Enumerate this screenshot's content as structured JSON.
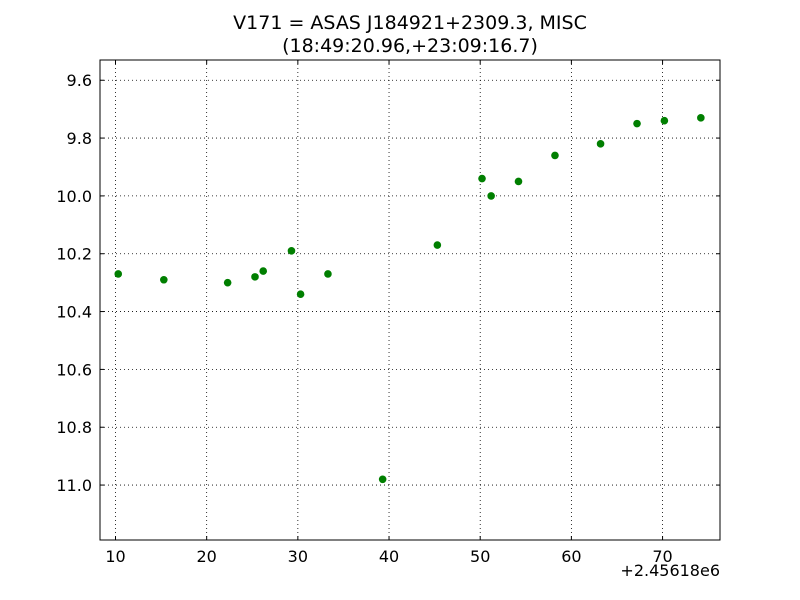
{
  "chart_data": {
    "type": "scatter",
    "title": "V171 = ASAS J184921+2309.3, MISC",
    "subtitle": "(18:49:20.96,+23:09:16.7)",
    "xlabel": "",
    "ylabel": "",
    "x_offset_label": "+2.45618e6",
    "xlim": [
      8.3,
      76.3
    ],
    "ylim": [
      11.19,
      9.53
    ],
    "y_inverted": true,
    "grid": true,
    "marker_color": "#007f00",
    "x_ticks": [
      10,
      20,
      30,
      40,
      50,
      60,
      70
    ],
    "x_tick_labels": [
      "10",
      "20",
      "30",
      "40",
      "50",
      "60",
      "70"
    ],
    "y_ticks": [
      9.6,
      9.8,
      10.0,
      10.2,
      10.4,
      10.6,
      10.8,
      11.0
    ],
    "y_tick_labels": [
      "9.6",
      "9.8",
      "10.0",
      "10.2",
      "10.4",
      "10.6",
      "10.8",
      "11.0"
    ],
    "points": [
      {
        "x": 10.3,
        "y": 10.27
      },
      {
        "x": 15.3,
        "y": 10.29
      },
      {
        "x": 22.3,
        "y": 10.3
      },
      {
        "x": 25.3,
        "y": 10.28
      },
      {
        "x": 26.2,
        "y": 10.26
      },
      {
        "x": 29.3,
        "y": 10.19
      },
      {
        "x": 30.3,
        "y": 10.34
      },
      {
        "x": 33.3,
        "y": 10.27
      },
      {
        "x": 39.3,
        "y": 10.98
      },
      {
        "x": 45.3,
        "y": 10.17
      },
      {
        "x": 50.2,
        "y": 9.94
      },
      {
        "x": 51.2,
        "y": 10.0
      },
      {
        "x": 54.2,
        "y": 9.95
      },
      {
        "x": 58.2,
        "y": 9.86
      },
      {
        "x": 63.2,
        "y": 9.82
      },
      {
        "x": 67.2,
        "y": 9.75
      },
      {
        "x": 70.2,
        "y": 9.74
      },
      {
        "x": 74.2,
        "y": 9.73
      }
    ]
  }
}
